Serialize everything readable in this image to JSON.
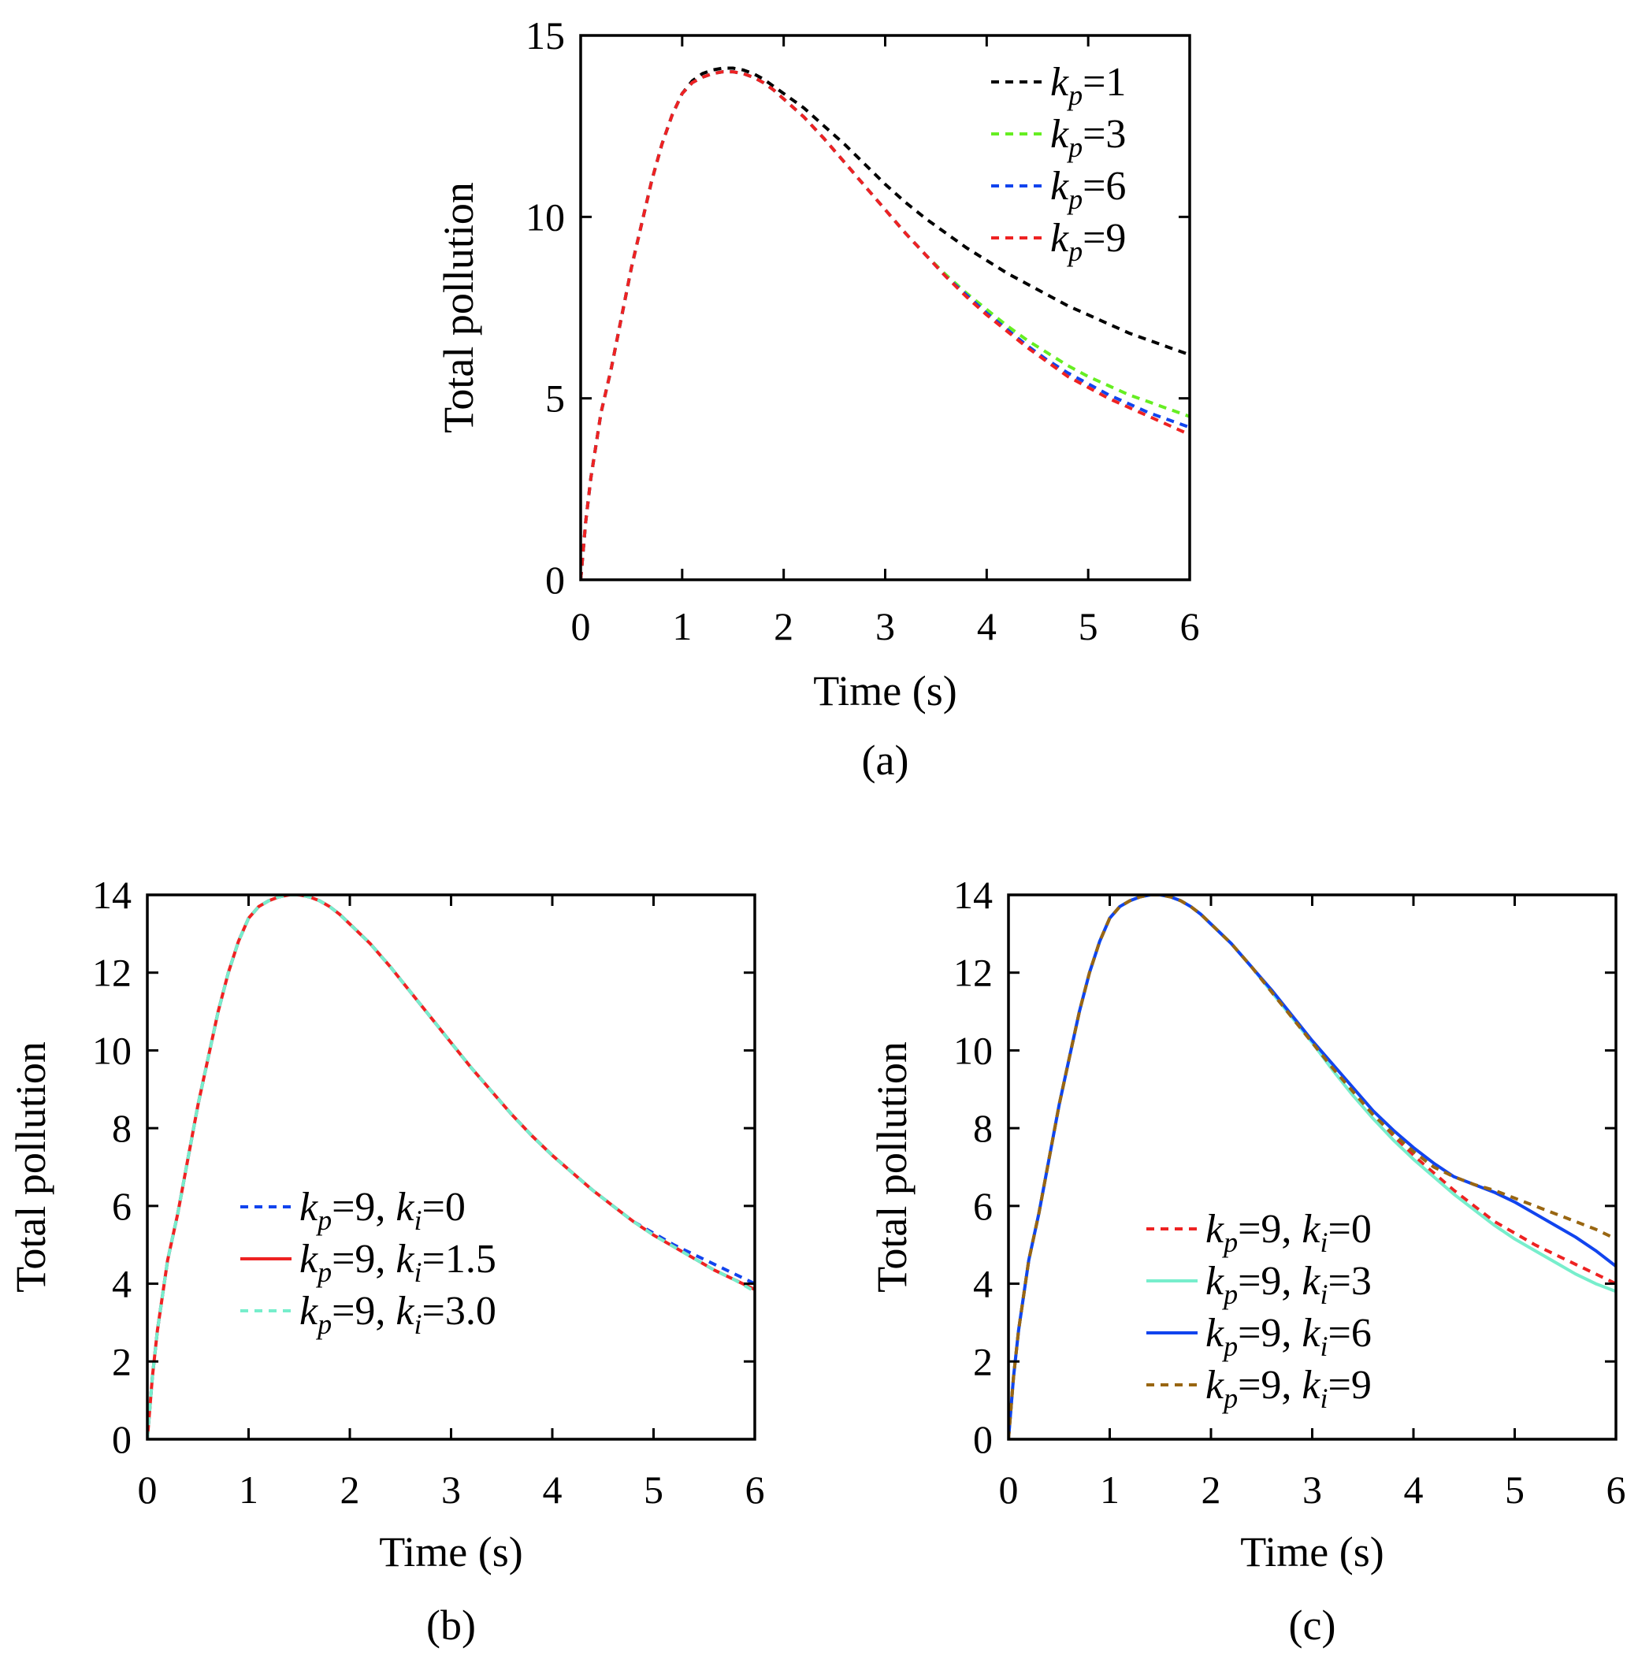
{
  "chart_data": [
    {
      "id": "a",
      "type": "line",
      "caption": "(a)",
      "xlabel": "Time (s)",
      "ylabel": "Total pollution",
      "xlim": [
        0,
        6
      ],
      "ylim": [
        0,
        15
      ],
      "xticks": [
        0,
        1,
        2,
        3,
        4,
        5,
        6
      ],
      "yticks": [
        0,
        5,
        10,
        15
      ],
      "legend_position": "top-right",
      "grid": false,
      "x": [
        0,
        0.05,
        0.1,
        0.2,
        0.3,
        0.4,
        0.5,
        0.6,
        0.7,
        0.8,
        0.9,
        1.0,
        1.1,
        1.2,
        1.3,
        1.4,
        1.5,
        1.6,
        1.7,
        1.8,
        1.9,
        2.0,
        2.2,
        2.4,
        2.6,
        2.8,
        3.0,
        3.2,
        3.4,
        3.6,
        3.8,
        4.0,
        4.2,
        4.4,
        4.6,
        4.8,
        5.0,
        5.2,
        5.4,
        5.6,
        5.8,
        6.0
      ],
      "series": [
        {
          "name_main": "k",
          "name_sub": "p",
          "name_rest": "=1",
          "color": "#000000",
          "dash": true,
          "values": [
            0,
            1.6,
            2.8,
            4.6,
            5.8,
            7.2,
            8.6,
            9.8,
            11.0,
            12.0,
            12.8,
            13.4,
            13.75,
            13.95,
            14.05,
            14.1,
            14.1,
            14.05,
            13.95,
            13.8,
            13.6,
            13.4,
            13.0,
            12.5,
            12.0,
            11.45,
            10.9,
            10.4,
            9.95,
            9.55,
            9.15,
            8.8,
            8.45,
            8.15,
            7.85,
            7.55,
            7.3,
            7.05,
            6.8,
            6.6,
            6.4,
            6.2
          ]
        },
        {
          "name_main": "k",
          "name_sub": "p",
          "name_rest": "=3",
          "color": "#66ee22",
          "dash": true,
          "values": [
            0,
            1.6,
            2.8,
            4.6,
            5.8,
            7.2,
            8.6,
            9.8,
            11.0,
            12.0,
            12.8,
            13.4,
            13.7,
            13.85,
            13.95,
            14.0,
            14.0,
            13.95,
            13.85,
            13.7,
            13.5,
            13.25,
            12.75,
            12.15,
            11.5,
            10.85,
            10.2,
            9.55,
            8.95,
            8.4,
            7.9,
            7.45,
            7.0,
            6.6,
            6.25,
            5.9,
            5.6,
            5.35,
            5.1,
            4.9,
            4.7,
            4.5
          ]
        },
        {
          "name_main": "k",
          "name_sub": "p",
          "name_rest": "=6",
          "color": "#1144ee",
          "dash": true,
          "values": [
            0,
            1.6,
            2.8,
            4.6,
            5.8,
            7.2,
            8.6,
            9.8,
            11.0,
            12.0,
            12.8,
            13.4,
            13.7,
            13.85,
            13.95,
            14.0,
            14.0,
            13.95,
            13.85,
            13.7,
            13.5,
            13.25,
            12.75,
            12.15,
            11.5,
            10.85,
            10.2,
            9.55,
            8.95,
            8.35,
            7.85,
            7.35,
            6.9,
            6.45,
            6.05,
            5.7,
            5.4,
            5.1,
            4.85,
            4.6,
            4.4,
            4.2
          ]
        },
        {
          "name_main": "k",
          "name_sub": "p",
          "name_rest": "=9",
          "color": "#ee2222",
          "dash": true,
          "values": [
            0,
            1.6,
            2.8,
            4.6,
            5.8,
            7.2,
            8.6,
            9.8,
            11.0,
            12.0,
            12.8,
            13.4,
            13.7,
            13.85,
            13.95,
            14.0,
            14.0,
            13.95,
            13.85,
            13.7,
            13.5,
            13.25,
            12.75,
            12.15,
            11.5,
            10.85,
            10.2,
            9.55,
            8.95,
            8.35,
            7.8,
            7.3,
            6.85,
            6.4,
            6.0,
            5.6,
            5.3,
            5.0,
            4.75,
            4.5,
            4.25,
            4.0
          ]
        }
      ]
    },
    {
      "id": "b",
      "type": "line",
      "caption": "(b)",
      "xlabel": "Time (s)",
      "ylabel": "Total pollution",
      "xlim": [
        0,
        6
      ],
      "ylim": [
        0,
        14
      ],
      "xticks": [
        0,
        1,
        2,
        3,
        4,
        5,
        6
      ],
      "yticks": [
        0,
        2,
        4,
        6,
        8,
        10,
        12,
        14
      ],
      "legend_position": "lower-left",
      "grid": false,
      "x": [
        0,
        0.05,
        0.1,
        0.2,
        0.3,
        0.4,
        0.5,
        0.6,
        0.7,
        0.8,
        0.9,
        1.0,
        1.1,
        1.2,
        1.3,
        1.4,
        1.5,
        1.6,
        1.7,
        1.8,
        1.9,
        2.0,
        2.2,
        2.4,
        2.6,
        2.8,
        3.0,
        3.2,
        3.4,
        3.6,
        3.8,
        4.0,
        4.2,
        4.4,
        4.6,
        4.8,
        5.0,
        5.2,
        5.4,
        5.6,
        5.8,
        6.0
      ],
      "series": [
        {
          "name_main": "k",
          "name_sub": "p",
          "name_rest": "=9, ",
          "name_main2": "k",
          "name_sub2": "i",
          "name_rest2": "=0",
          "color": "#1144ee",
          "dash": true,
          "values": [
            0,
            1.6,
            2.8,
            4.6,
            5.8,
            7.2,
            8.6,
            9.8,
            11.0,
            12.0,
            12.8,
            13.4,
            13.7,
            13.85,
            13.95,
            14.0,
            14.0,
            13.95,
            13.85,
            13.7,
            13.5,
            13.25,
            12.75,
            12.15,
            11.5,
            10.85,
            10.2,
            9.55,
            8.95,
            8.35,
            7.8,
            7.3,
            6.85,
            6.4,
            6.0,
            5.6,
            5.3,
            5.0,
            4.75,
            4.5,
            4.25,
            4.0
          ]
        },
        {
          "name_main": "k",
          "name_sub": "p",
          "name_rest": "=9, ",
          "name_main2": "k",
          "name_sub2": "i",
          "name_rest2": "=1.5",
          "color": "#ee2222",
          "dash": false,
          "values": [
            0,
            1.6,
            2.8,
            4.6,
            5.8,
            7.2,
            8.6,
            9.8,
            11.0,
            12.0,
            12.8,
            13.4,
            13.7,
            13.85,
            13.95,
            14.0,
            14.0,
            13.95,
            13.85,
            13.7,
            13.5,
            13.25,
            12.75,
            12.15,
            11.5,
            10.85,
            10.2,
            9.55,
            8.95,
            8.35,
            7.8,
            7.3,
            6.85,
            6.4,
            6.0,
            5.6,
            5.25,
            4.95,
            4.65,
            4.35,
            4.1,
            3.85
          ]
        },
        {
          "name_main": "k",
          "name_sub": "p",
          "name_rest": "=9, ",
          "name_main2": "k",
          "name_sub2": "i",
          "name_rest2": "=3.0",
          "color": "#77eecc",
          "dash": true,
          "values": [
            0,
            1.6,
            2.8,
            4.6,
            5.8,
            7.2,
            8.6,
            9.8,
            11.0,
            12.0,
            12.8,
            13.4,
            13.7,
            13.85,
            13.95,
            14.0,
            14.0,
            13.95,
            13.85,
            13.7,
            13.5,
            13.25,
            12.75,
            12.15,
            11.5,
            10.85,
            10.2,
            9.55,
            8.95,
            8.35,
            7.8,
            7.3,
            6.85,
            6.4,
            6.0,
            5.6,
            5.25,
            4.95,
            4.65,
            4.35,
            4.1,
            3.8
          ]
        }
      ]
    },
    {
      "id": "c",
      "type": "line",
      "caption": "(c)",
      "xlabel": "Time (s)",
      "ylabel": "Total pollution",
      "xlim": [
        0,
        6
      ],
      "ylim": [
        0,
        14
      ],
      "xticks": [
        0,
        1,
        2,
        3,
        4,
        5,
        6
      ],
      "yticks": [
        0,
        2,
        4,
        6,
        8,
        10,
        12,
        14
      ],
      "legend_position": "lower-left",
      "grid": false,
      "x": [
        0,
        0.05,
        0.1,
        0.2,
        0.3,
        0.4,
        0.5,
        0.6,
        0.7,
        0.8,
        0.9,
        1.0,
        1.1,
        1.2,
        1.3,
        1.4,
        1.5,
        1.6,
        1.7,
        1.8,
        1.9,
        2.0,
        2.2,
        2.4,
        2.6,
        2.8,
        3.0,
        3.2,
        3.4,
        3.6,
        3.8,
        4.0,
        4.2,
        4.4,
        4.6,
        4.8,
        5.0,
        5.2,
        5.4,
        5.6,
        5.8,
        6.0
      ],
      "series": [
        {
          "name_main": "k",
          "name_sub": "p",
          "name_rest": "=9, ",
          "name_main2": "k",
          "name_sub2": "i",
          "name_rest2": "=0",
          "color": "#ee2222",
          "dash": true,
          "values": [
            0,
            1.6,
            2.8,
            4.6,
            5.8,
            7.2,
            8.6,
            9.8,
            11.0,
            12.0,
            12.8,
            13.4,
            13.7,
            13.85,
            13.95,
            14.0,
            14.0,
            13.95,
            13.85,
            13.7,
            13.5,
            13.25,
            12.75,
            12.15,
            11.5,
            10.85,
            10.2,
            9.55,
            8.95,
            8.35,
            7.8,
            7.3,
            6.85,
            6.4,
            6.0,
            5.6,
            5.3,
            5.0,
            4.75,
            4.5,
            4.25,
            4.0
          ]
        },
        {
          "name_main": "k",
          "name_sub": "p",
          "name_rest": "=9, ",
          "name_main2": "k",
          "name_sub2": "i",
          "name_rest2": "=3",
          "color": "#77eecc",
          "dash": false,
          "values": [
            0,
            1.6,
            2.8,
            4.6,
            5.8,
            7.2,
            8.6,
            9.8,
            11.0,
            12.0,
            12.8,
            13.4,
            13.7,
            13.85,
            13.95,
            14.0,
            14.0,
            13.95,
            13.85,
            13.7,
            13.5,
            13.25,
            12.75,
            12.15,
            11.5,
            10.85,
            10.2,
            9.5,
            8.85,
            8.25,
            7.7,
            7.2,
            6.75,
            6.3,
            5.9,
            5.5,
            5.15,
            4.85,
            4.55,
            4.25,
            4.0,
            3.8
          ]
        },
        {
          "name_main": "k",
          "name_sub": "p",
          "name_rest": "=9, ",
          "name_main2": "k",
          "name_sub2": "i",
          "name_rest2": "=6",
          "color": "#1144ee",
          "dash": false,
          "values": [
            0,
            1.6,
            2.8,
            4.6,
            5.8,
            7.2,
            8.6,
            9.8,
            11.0,
            12.0,
            12.8,
            13.4,
            13.7,
            13.85,
            13.95,
            14.0,
            14.0,
            13.95,
            13.85,
            13.7,
            13.5,
            13.25,
            12.75,
            12.15,
            11.55,
            10.9,
            10.25,
            9.65,
            9.05,
            8.45,
            7.95,
            7.5,
            7.1,
            6.75,
            6.55,
            6.35,
            6.1,
            5.8,
            5.5,
            5.2,
            4.85,
            4.45
          ]
        },
        {
          "name_main": "k",
          "name_sub": "p",
          "name_rest": "=9, ",
          "name_main2": "k",
          "name_sub2": "i",
          "name_rest2": "=9",
          "color": "#996611",
          "dash": true,
          "values": [
            0,
            1.6,
            2.8,
            4.6,
            5.8,
            7.2,
            8.6,
            9.8,
            11.0,
            12.0,
            12.8,
            13.4,
            13.7,
            13.85,
            13.95,
            14.0,
            14.0,
            13.95,
            13.85,
            13.7,
            13.5,
            13.25,
            12.75,
            12.15,
            11.5,
            10.85,
            10.2,
            9.55,
            8.95,
            8.35,
            7.85,
            7.4,
            7.0,
            6.75,
            6.55,
            6.4,
            6.2,
            6.0,
            5.8,
            5.6,
            5.4,
            5.15
          ]
        }
      ]
    }
  ]
}
